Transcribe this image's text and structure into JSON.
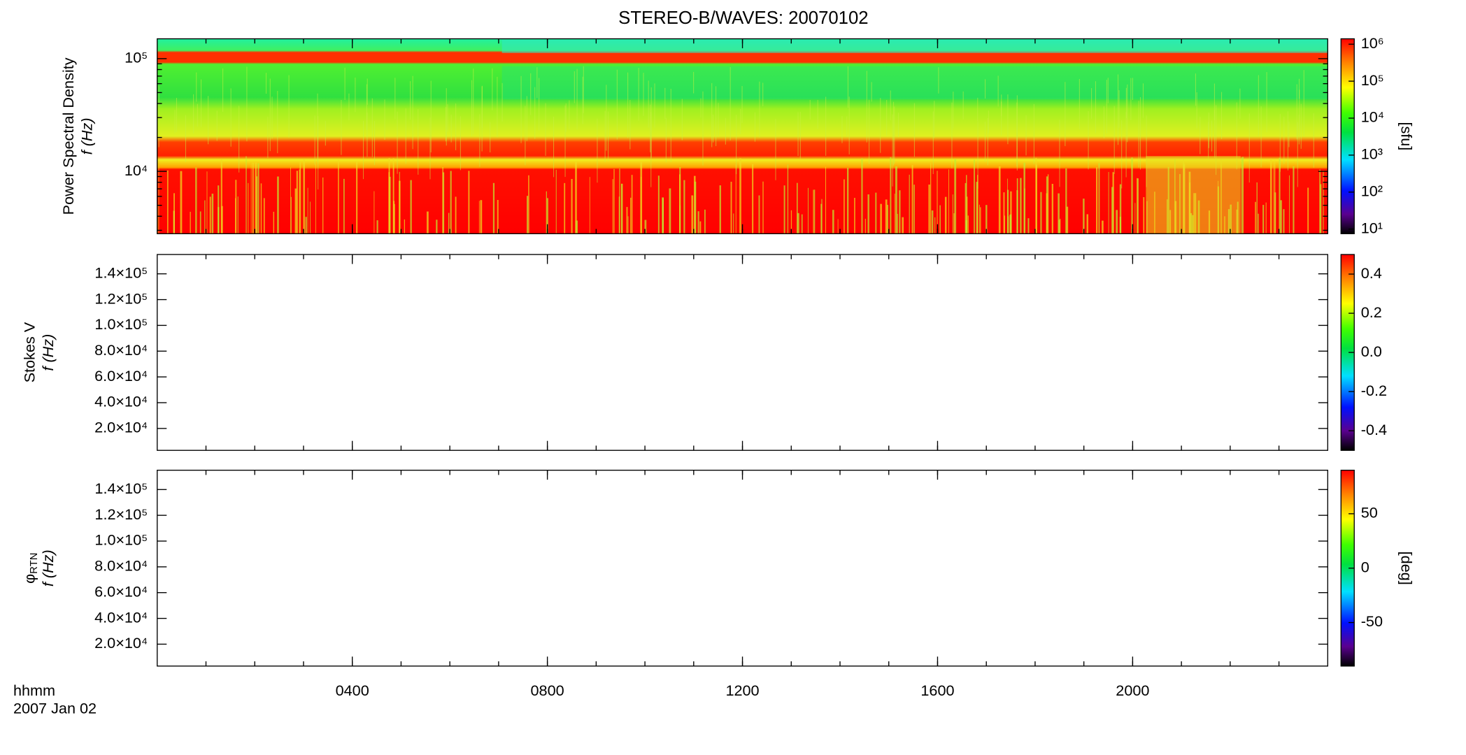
{
  "chart_data": [
    {
      "type": "heatmap",
      "title": "STEREO-B/WAVES: 20070102",
      "ylabel": [
        "Power Spectral Density",
        "f (Hz)"
      ],
      "ylog": true,
      "ylim": [
        2800,
        150000
      ],
      "yticks": [
        {
          "value": 10000,
          "label": "10⁴"
        },
        {
          "value": 100000,
          "label": "10⁵"
        }
      ],
      "xlim": [
        0,
        24
      ],
      "clog": true,
      "clim": [
        7.5,
        1400000
      ],
      "cticks": [
        {
          "value": 10,
          "label": "10¹"
        },
        {
          "value": 100,
          "label": "10²"
        },
        {
          "value": 1000,
          "label": "10³"
        },
        {
          "value": 10000,
          "label": "10⁴"
        },
        {
          "value": 100000,
          "label": "10⁵"
        },
        {
          "value": 1000000,
          "label": "10⁶"
        }
      ],
      "clabel": "[sfu]"
    },
    {
      "type": "heatmap",
      "ylabel": [
        "Stokes V",
        "f (Hz)"
      ],
      "ylog": false,
      "ylim": [
        3000,
        155000
      ],
      "yticks": [
        {
          "value": 20000,
          "label": "2.0×10⁴"
        },
        {
          "value": 40000,
          "label": "4.0×10⁴"
        },
        {
          "value": 60000,
          "label": "6.0×10⁴"
        },
        {
          "value": 80000,
          "label": "8.0×10⁴"
        },
        {
          "value": 100000,
          "label": "1.0×10⁵"
        },
        {
          "value": 120000,
          "label": "1.2×10⁵"
        },
        {
          "value": 140000,
          "label": "1.4×10⁵"
        }
      ],
      "xlim": [
        0,
        24
      ],
      "clog": false,
      "clim": [
        -0.5,
        0.5
      ],
      "cticks": [
        -0.4,
        -0.2,
        {
          "value": 0,
          "label": "0.0"
        },
        0.2,
        0.4
      ]
    },
    {
      "type": "heatmap",
      "ylabel": [
        "φ",
        "f (Hz)"
      ],
      "ylabel_sub": "RTN",
      "ylog": false,
      "ylim": [
        3000,
        155000
      ],
      "yticks": [
        {
          "value": 20000,
          "label": "2.0×10⁴"
        },
        {
          "value": 40000,
          "label": "4.0×10⁴"
        },
        {
          "value": 60000,
          "label": "6.0×10⁴"
        },
        {
          "value": 80000,
          "label": "8.0×10⁴"
        },
        {
          "value": 100000,
          "label": "1.0×10⁵"
        },
        {
          "value": 120000,
          "label": "1.2×10⁵"
        },
        {
          "value": 140000,
          "label": "1.4×10⁵"
        }
      ],
      "xlim": [
        0,
        24
      ],
      "xticks": [
        {
          "value": 4,
          "label": "0400"
        },
        {
          "value": 8,
          "label": "0800"
        },
        {
          "value": 12,
          "label": "1200"
        },
        {
          "value": 16,
          "label": "1600"
        },
        {
          "value": 20,
          "label": "2000"
        }
      ],
      "xlabel": "hhmm",
      "date": "2007 Jan 02",
      "clog": false,
      "clim": [
        -90,
        90
      ],
      "cticks": [
        -50,
        0,
        50
      ],
      "clabel": "[deg]"
    }
  ]
}
